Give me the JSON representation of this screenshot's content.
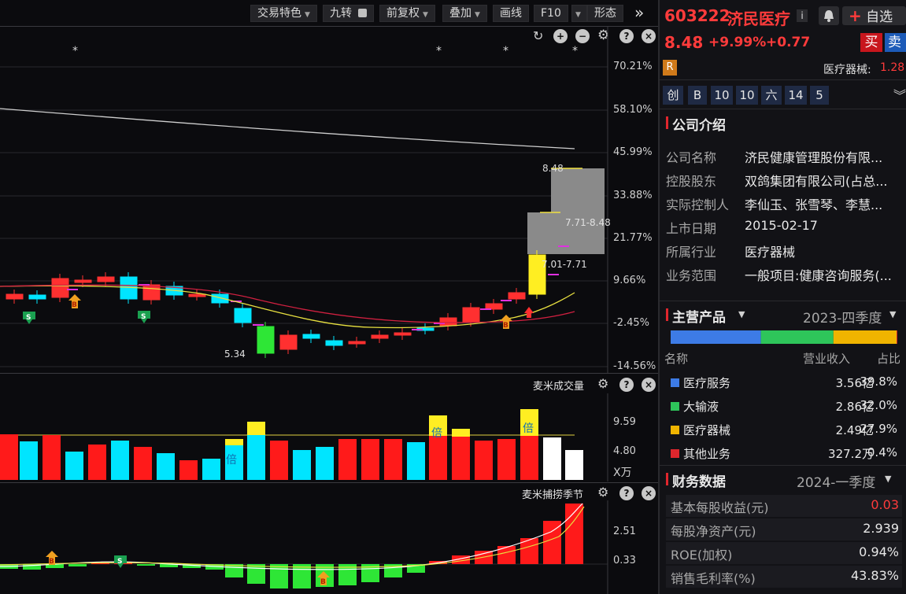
{
  "toolbar": {
    "trading_features": "交易特色",
    "nine_turn": "九转",
    "restore": "前复权",
    "overlay": "叠加",
    "draw_line": "画线",
    "f10": "F10",
    "pattern": "形态"
  },
  "main_chart": {
    "y_axis_labels": [
      "70.21%",
      "58.10%",
      "45.99%",
      "33.88%",
      "21.77%",
      "9.66%",
      "-2.45%",
      "-14.56%"
    ],
    "price_high_label": "8.48",
    "range_label_1": "7.71-8.48",
    "range_label_2": "7.01-7.71",
    "low_label": "5.34",
    "b_marker": "B",
    "s_marker": "S",
    "star": "*"
  },
  "volume_chart": {
    "title": "麦米成交量",
    "y_axis_labels": [
      "9.59",
      "4.80",
      "X万"
    ],
    "bei_label": "倍"
  },
  "indicator_chart": {
    "title": "麦米捕捞季节",
    "y_axis_labels": [
      "2.51",
      "0.33"
    ]
  },
  "stock": {
    "code": "603222",
    "name": "济民医疗",
    "info_icon": "i",
    "bell_icon": "bell-icon",
    "add_favorite": "自选",
    "price": "8.48",
    "change_pct": "+9.99%",
    "change_amt": "+0.77",
    "buy": "买",
    "sell": "卖",
    "r_badge": "R",
    "industry_label": "医疗器械:",
    "industry_change": "1.28",
    "tags": [
      "创",
      "B",
      "10",
      "10",
      "六",
      "14",
      "5"
    ]
  },
  "company": {
    "title": "公司介绍",
    "rows": [
      {
        "k": "公司名称",
        "v": "济民健康管理股份有限..."
      },
      {
        "k": "控股股东",
        "v": "双鸽集团有限公司(占总..."
      },
      {
        "k": "实际控制人",
        "v": "李仙玉、张雪琴、李慧..."
      },
      {
        "k": "上市日期",
        "v": "2015-02-17"
      },
      {
        "k": "所属行业",
        "v": "医疗器械"
      },
      {
        "k": "业务范围",
        "v": "一般项目:健康咨询服务(..."
      }
    ]
  },
  "products": {
    "title": "主营产品",
    "period": "2023-四季度",
    "col_name": "名称",
    "col_revenue": "营业收入",
    "col_ratio": "占比",
    "items": [
      {
        "name": "医疗服务",
        "revenue": "3.56亿",
        "ratio": "39.8%",
        "color": "#3d7be6",
        "share": 0.398
      },
      {
        "name": "大输液",
        "revenue": "2.86亿",
        "ratio": "32.0%",
        "color": "#2ec55a",
        "share": 0.32
      },
      {
        "name": "医疗器械",
        "revenue": "2.49亿",
        "ratio": "27.9%",
        "color": "#f0b400",
        "share": 0.279
      },
      {
        "name": "其他业务",
        "revenue": "327.2万",
        "ratio": "0.4%",
        "color": "#e0262d",
        "share": 0.004
      }
    ]
  },
  "finance": {
    "title": "财务数据",
    "period": "2024-一季度",
    "rows": [
      {
        "k": "基本每股收益(元)",
        "v": "0.03",
        "color": "#ff3b3b"
      },
      {
        "k": "每股净资产(元)",
        "v": "2.939",
        "color": "#e8e8e8"
      },
      {
        "k": "ROE(加权)",
        "v": "0.94%",
        "color": "#e8e8e8"
      },
      {
        "k": "销售毛利率(%)",
        "v": "43.83%",
        "color": "#e8e8e8"
      }
    ]
  }
}
